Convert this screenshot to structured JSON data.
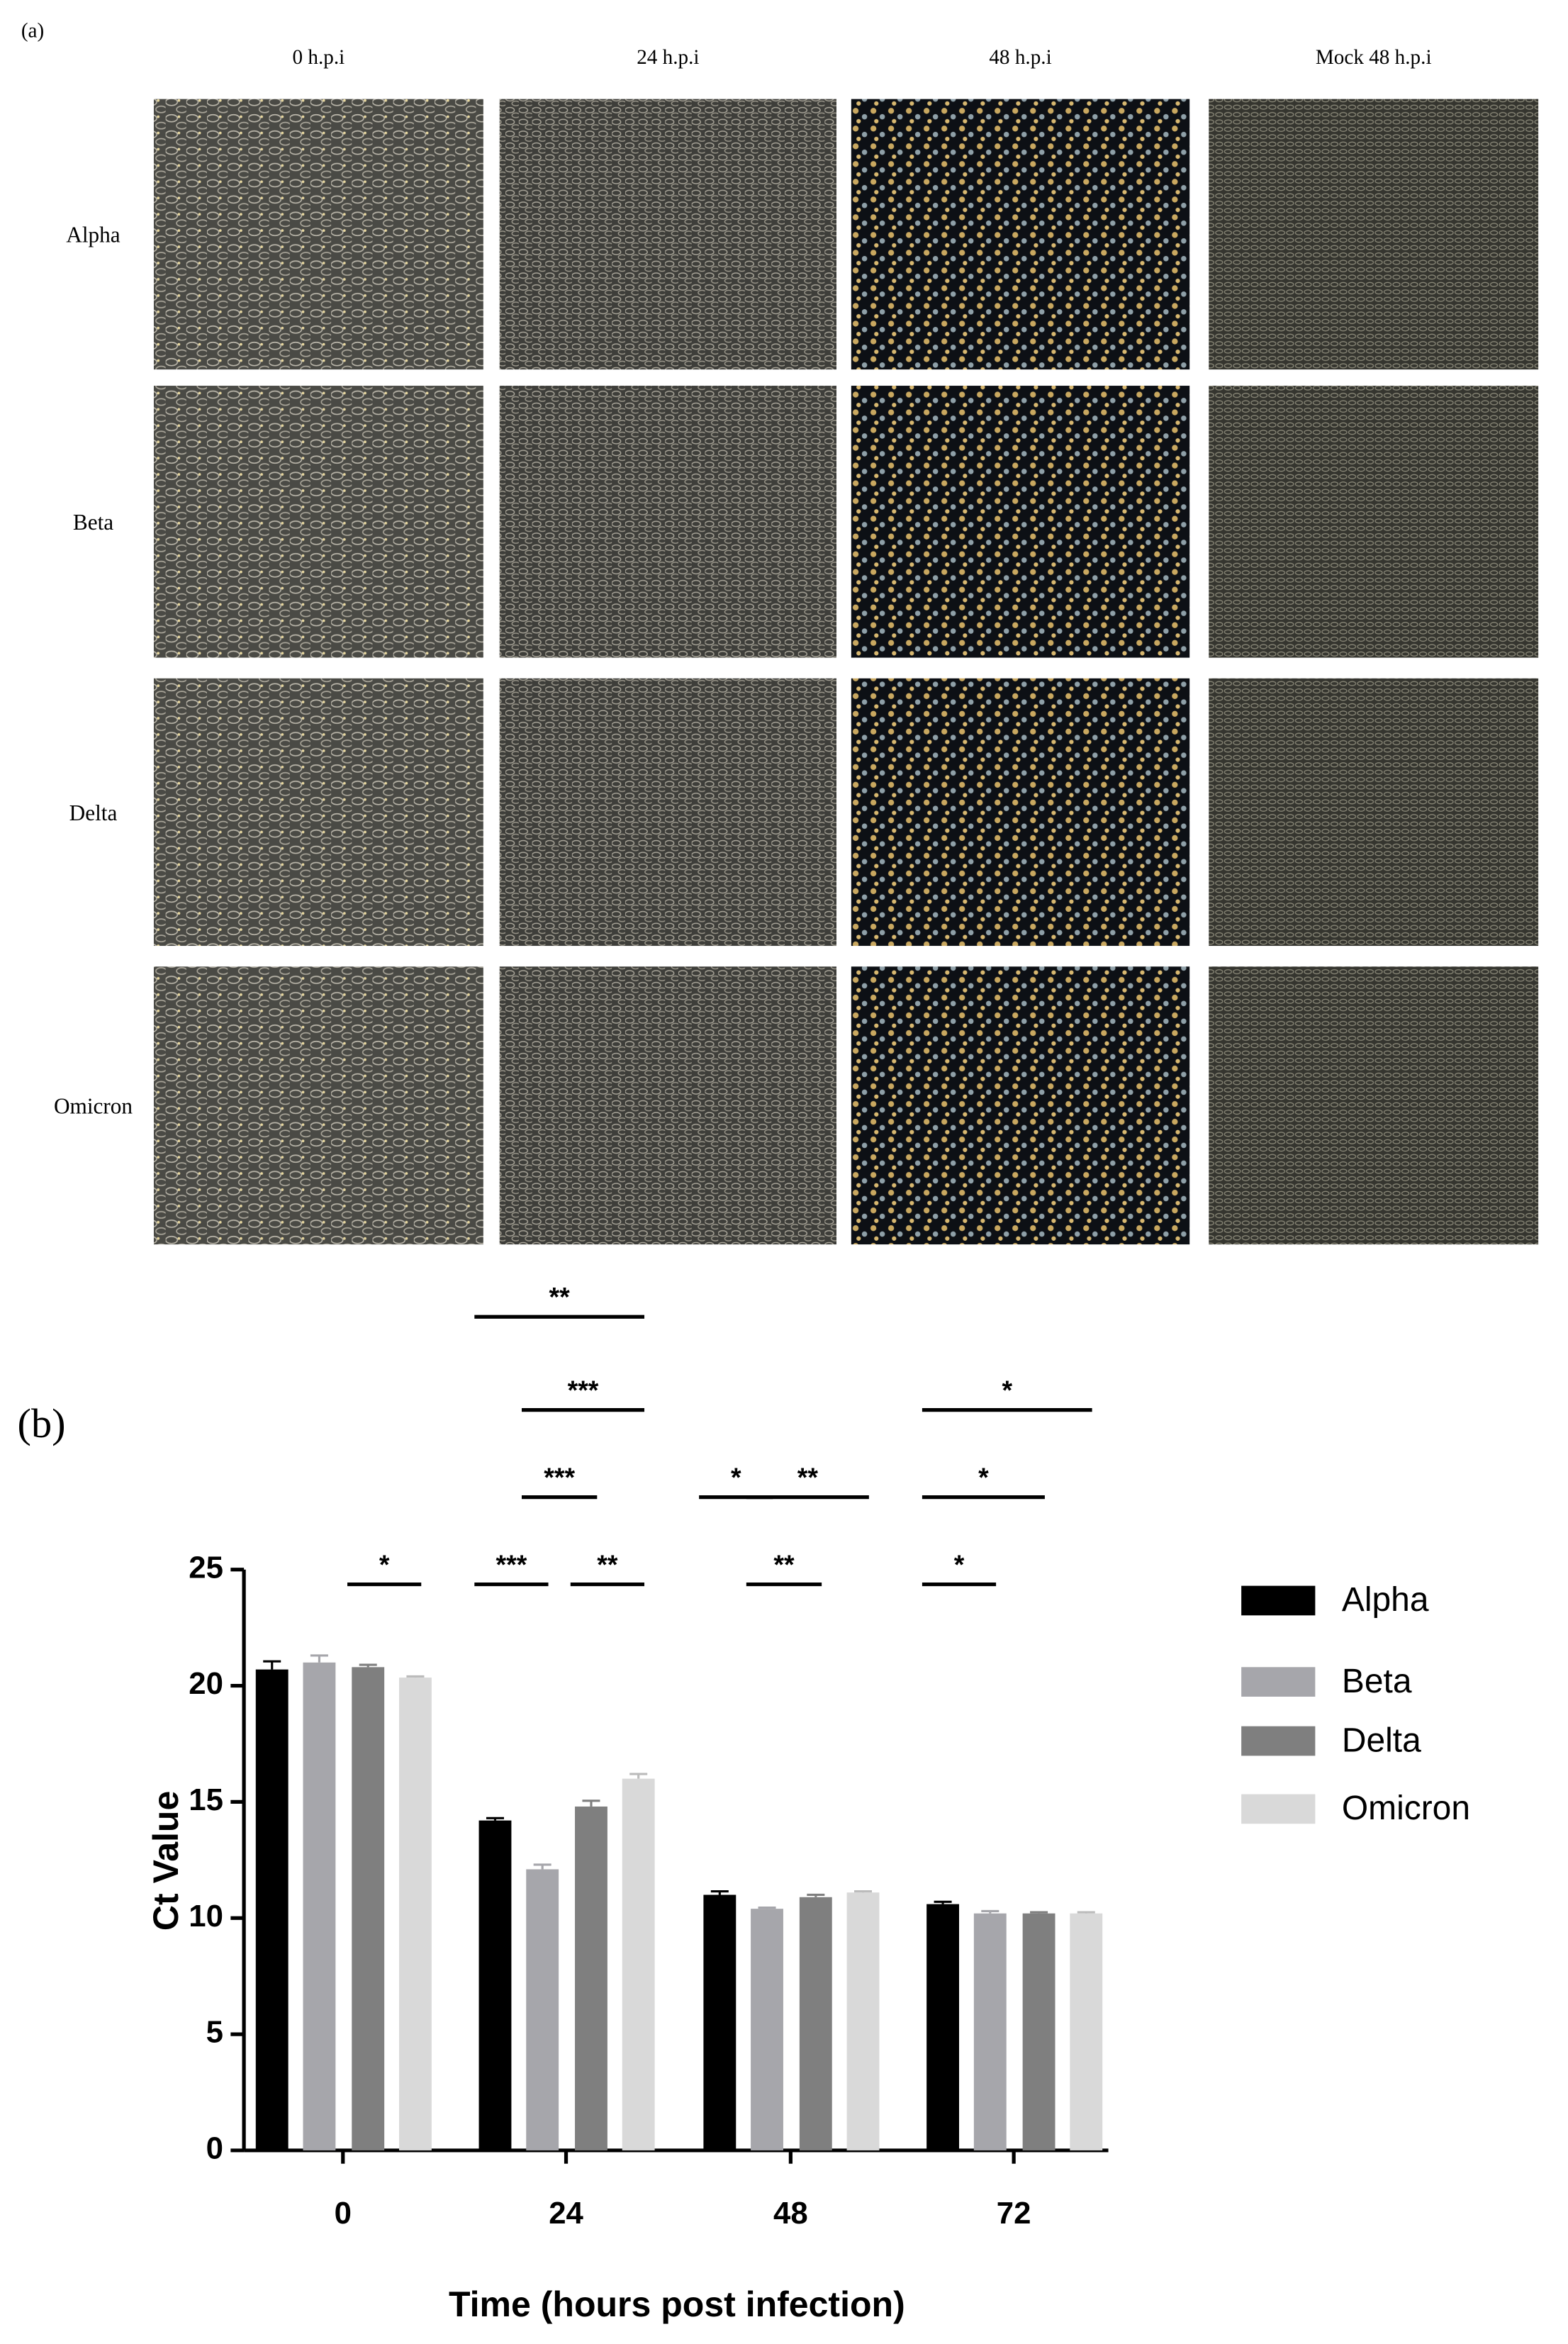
{
  "panel_a": {
    "label": "(a)",
    "columns": [
      "0 h.p.i",
      "24 h.p.i",
      "48 h.p.i",
      "Mock 48 h.p.i"
    ],
    "rows": [
      "Alpha",
      "Beta",
      "Delta",
      "Omicron"
    ]
  },
  "chart_data": {
    "type": "bar",
    "panel_label": "(b)",
    "x_label": "Time (hours post infection)",
    "y_label": "Ct Value",
    "categories": [
      "0",
      "24",
      "48",
      "72"
    ],
    "series": [
      {
        "name": "Alpha",
        "color": "#000000",
        "values": [
          20.7,
          14.2,
          11.0,
          10.6
        ],
        "errors": [
          0.35,
          0.1,
          0.15,
          0.1
        ]
      },
      {
        "name": "Beta",
        "color": "#a6a6ab",
        "values": [
          21.0,
          12.1,
          10.4,
          10.2
        ],
        "errors": [
          0.3,
          0.2,
          0.05,
          0.1
        ]
      },
      {
        "name": "Delta",
        "color": "#7f7f7f",
        "values": [
          20.8,
          14.8,
          10.9,
          10.2
        ],
        "errors": [
          0.1,
          0.25,
          0.1,
          0.05
        ]
      },
      {
        "name": "Omicron",
        "color": "#d9d9d9",
        "values": [
          20.35,
          16.0,
          11.1,
          10.2
        ],
        "errors": [
          0.05,
          0.2,
          0.05,
          0.05
        ]
      }
    ],
    "ylim": [
      0,
      25
    ],
    "yticks": [
      0,
      5,
      10,
      15,
      20,
      25
    ],
    "comparisons": [
      {
        "category": 0,
        "from": 2,
        "to": 3,
        "label": "*"
      },
      {
        "category": 1,
        "from": 0,
        "to": 1,
        "label": "***"
      },
      {
        "category": 1,
        "from": 2,
        "to": 3,
        "label": "**"
      },
      {
        "category": 1,
        "from": 1,
        "to": 2,
        "label": "***"
      },
      {
        "category": 1,
        "from": 1,
        "to": 3,
        "label": "***"
      },
      {
        "category": 1,
        "from": 0,
        "to": 3,
        "label": "**"
      },
      {
        "category": 2,
        "from": 1,
        "to": 2,
        "label": "**"
      },
      {
        "category": 2,
        "from": 0,
        "to": 1,
        "label": "*"
      },
      {
        "category": 2,
        "from": 1,
        "to": 3,
        "label": "**"
      },
      {
        "category": 3,
        "from": 0,
        "to": 1,
        "label": "*"
      },
      {
        "category": 3,
        "from": 0,
        "to": 2,
        "label": "*"
      },
      {
        "category": 3,
        "from": 0,
        "to": 3,
        "label": "*"
      }
    ]
  }
}
